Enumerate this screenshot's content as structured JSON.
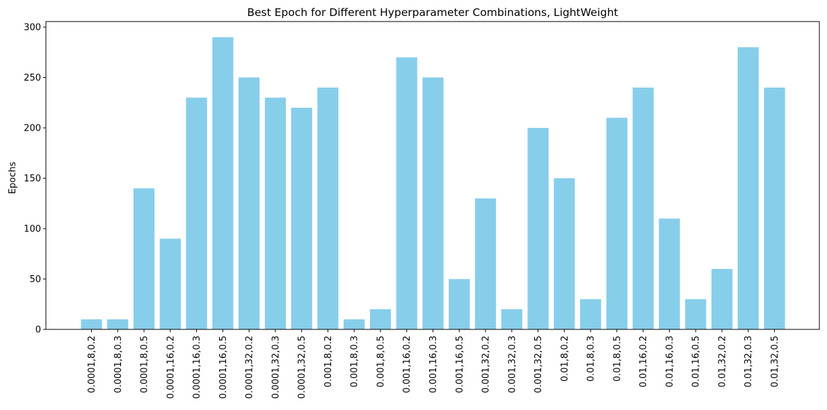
{
  "chart_data": {
    "type": "bar",
    "title": "Best Epoch for Different Hyperparameter Combinations, LightWeight",
    "xlabel": "",
    "ylabel": "Epochs",
    "ylim": [
      0,
      300
    ],
    "yticks": [
      0,
      50,
      100,
      150,
      200,
      250,
      300
    ],
    "bar_color": "#87ceeb",
    "grid": false,
    "categories": [
      "0.0001,8,0.2",
      "0.0001,8,0.3",
      "0.0001,8,0.5",
      "0.0001,16,0.2",
      "0.0001,16,0.3",
      "0.0001,16,0.5",
      "0.0001,32,0.2",
      "0.0001,32,0.3",
      "0.0001,32,0.5",
      "0.001,8,0.2",
      "0.001,8,0.3",
      "0.001,8,0.5",
      "0.001,16,0.2",
      "0.001,16,0.3",
      "0.001,16,0.5",
      "0.001,32,0.2",
      "0.001,32,0.3",
      "0.001,32,0.5",
      "0.01,8,0.2",
      "0.01,8,0.3",
      "0.01,8,0.5",
      "0.01,16,0.2",
      "0.01,16,0.3",
      "0.01,16,0.5",
      "0.01,32,0.2",
      "0.01,32,0.3",
      "0.01,32,0.5"
    ],
    "values": [
      10,
      10,
      140,
      90,
      230,
      290,
      250,
      230,
      220,
      240,
      10,
      20,
      270,
      250,
      50,
      130,
      20,
      200,
      150,
      30,
      210,
      240,
      110,
      30,
      60,
      280,
      240
    ]
  }
}
